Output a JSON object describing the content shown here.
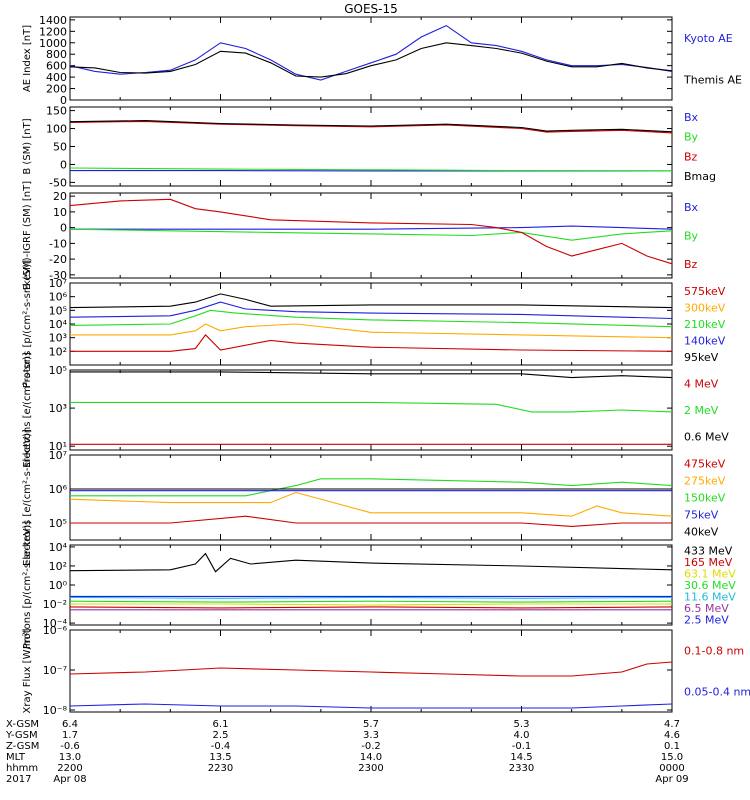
{
  "title": "GOES-15",
  "colors": {
    "black": "#000000",
    "blue": "#1f1fe0",
    "green": "#22dd22",
    "red": "#cc0000",
    "orange": "#ffaa00",
    "yellow": "#dddd00",
    "cyan": "#22bbdd",
    "purple": "#993399"
  },
  "chart_data": [
    {
      "type": "line",
      "ylabel": "AE Index [nT]",
      "ylim": [
        0,
        1450
      ],
      "yticks": [
        "1400",
        "1200",
        "1000",
        "800",
        "600",
        "400",
        "200",
        "0"
      ],
      "ytick_values": [
        1400,
        1200,
        1000,
        800,
        600,
        400,
        200,
        0
      ],
      "series": [
        {
          "name": "Kyoto AE",
          "color": "blue",
          "t": [
            0,
            5,
            10,
            15,
            20,
            25,
            30,
            35,
            40,
            45,
            50,
            55,
            60,
            65,
            70,
            75,
            80,
            85,
            90,
            95,
            100,
            105,
            110,
            115,
            120
          ],
          "values": [
            600,
            500,
            450,
            480,
            520,
            700,
            1000,
            900,
            700,
            450,
            350,
            500,
            650,
            800,
            1100,
            1300,
            1000,
            950,
            850,
            700,
            600,
            600,
            620,
            570,
            500
          ]
        },
        {
          "name": "Themis AE",
          "color": "black",
          "t": [
            0,
            5,
            10,
            15,
            20,
            25,
            30,
            35,
            40,
            45,
            50,
            55,
            60,
            65,
            70,
            75,
            80,
            85,
            90,
            95,
            100,
            105,
            110,
            115,
            120
          ],
          "values": [
            580,
            560,
            480,
            470,
            500,
            620,
            850,
            820,
            650,
            420,
            400,
            460,
            600,
            700,
            900,
            1000,
            950,
            900,
            820,
            680,
            580,
            580,
            640,
            560,
            510
          ]
        }
      ]
    },
    {
      "type": "line",
      "ylabel": "B (SM) [nT]",
      "ylim": [
        -60,
        160
      ],
      "yticks": [
        "150",
        "100",
        "50",
        "0",
        "-50"
      ],
      "ytick_values": [
        150,
        100,
        50,
        0,
        -50
      ],
      "series": [
        {
          "name": "Bx",
          "color": "blue",
          "t": [
            0,
            30,
            60,
            90,
            120
          ],
          "values": [
            -17,
            -17,
            -18,
            -18,
            -18
          ]
        },
        {
          "name": "By",
          "color": "green",
          "t": [
            0,
            30,
            60,
            90,
            120
          ],
          "values": [
            -10,
            -13,
            -15,
            -17,
            -18
          ]
        },
        {
          "name": "Bz",
          "color": "red",
          "t": [
            0,
            15,
            30,
            45,
            60,
            75,
            90,
            95,
            100,
            110,
            120
          ],
          "values": [
            117,
            120,
            112,
            108,
            105,
            110,
            100,
            90,
            92,
            95,
            88
          ]
        },
        {
          "name": "Bmag",
          "color": "black",
          "t": [
            0,
            15,
            30,
            45,
            60,
            75,
            90,
            95,
            100,
            110,
            120
          ],
          "values": [
            119,
            122,
            114,
            110,
            107,
            112,
            103,
            93,
            95,
            98,
            91
          ]
        }
      ]
    },
    {
      "type": "line",
      "ylabel": "B (SM)-IGRF (SM) [nT]",
      "ylim": [
        -32,
        22
      ],
      "yticks": [
        "20",
        "10",
        "0",
        "-10",
        "-20",
        "-30"
      ],
      "ytick_values": [
        20,
        10,
        0,
        -10,
        -20,
        -30
      ],
      "series": [
        {
          "name": "Bx",
          "color": "blue",
          "t": [
            0,
            30,
            60,
            90,
            100,
            110,
            120
          ],
          "values": [
            -1,
            -1,
            -1,
            0,
            1,
            0,
            -1
          ]
        },
        {
          "name": "By",
          "color": "green",
          "t": [
            0,
            20,
            40,
            60,
            80,
            90,
            100,
            110,
            120
          ],
          "values": [
            -1,
            -2,
            -3,
            -4,
            -5,
            -3,
            -8,
            -4,
            -2
          ]
        },
        {
          "name": "Bz",
          "color": "red",
          "t": [
            0,
            10,
            20,
            25,
            30,
            40,
            60,
            80,
            85,
            90,
            95,
            100,
            105,
            110,
            115,
            120
          ],
          "values": [
            14,
            17,
            18,
            12,
            10,
            5,
            3,
            2,
            0,
            -3,
            -12,
            -18,
            -14,
            -10,
            -18,
            -23
          ]
        }
      ]
    },
    {
      "type": "line",
      "ylabel": "Protons [p/(cm²-s-sr-keV)]",
      "yscale": "log",
      "ylim": [
        1,
        7
      ],
      "yticks": [
        "10⁷",
        "10⁶",
        "10⁵",
        "10⁴",
        "10³",
        "10²"
      ],
      "ytick_values": [
        7,
        6,
        5,
        4,
        3,
        2
      ],
      "series": [
        {
          "name": "575keV",
          "color": "red",
          "t": [
            0,
            20,
            25,
            27,
            30,
            40,
            45,
            60,
            90,
            120
          ],
          "values": [
            2.0,
            2.0,
            2.2,
            3.2,
            2.1,
            2.8,
            2.6,
            2.3,
            2.1,
            2.0
          ]
        },
        {
          "name": "300keV",
          "color": "orange",
          "t": [
            0,
            20,
            25,
            27,
            30,
            35,
            45,
            60,
            90,
            120
          ],
          "values": [
            3.2,
            3.2,
            3.5,
            4.0,
            3.5,
            3.8,
            4.0,
            3.4,
            3.2,
            3.0
          ]
        },
        {
          "name": "210keV",
          "color": "green",
          "t": [
            0,
            20,
            25,
            28,
            33,
            45,
            60,
            90,
            120
          ],
          "values": [
            3.9,
            4.0,
            4.6,
            5.0,
            4.8,
            4.5,
            4.3,
            4.1,
            3.8
          ]
        },
        {
          "name": "140keV",
          "color": "blue",
          "t": [
            0,
            20,
            25,
            30,
            35,
            45,
            60,
            90,
            120
          ],
          "values": [
            4.5,
            4.6,
            5.0,
            5.6,
            5.1,
            4.9,
            4.8,
            4.7,
            4.4
          ]
        },
        {
          "name": "95keV",
          "color": "black",
          "t": [
            0,
            20,
            25,
            30,
            35,
            40,
            60,
            90,
            120
          ],
          "values": [
            5.2,
            5.3,
            5.6,
            6.2,
            5.8,
            5.3,
            5.4,
            5.4,
            5.2
          ]
        }
      ]
    },
    {
      "type": "line",
      "ylabel": "Electrons [e/(cm²-s-sr)]",
      "yscale": "log",
      "ylim": [
        0.8,
        5
      ],
      "yticks": [
        "10⁵",
        "10³",
        "10¹"
      ],
      "ytick_values": [
        5,
        3,
        1
      ],
      "series": [
        {
          "name": "4 MeV",
          "color": "red",
          "t": [
            0,
            30,
            60,
            90,
            120
          ],
          "values": [
            1.1,
            1.1,
            1.1,
            1.1,
            1.1
          ]
        },
        {
          "name": "2 MeV",
          "color": "green",
          "t": [
            0,
            30,
            60,
            85,
            92,
            100,
            110,
            120
          ],
          "values": [
            3.3,
            3.3,
            3.3,
            3.2,
            2.8,
            2.8,
            2.9,
            2.8
          ]
        },
        {
          "name": "0.6 MeV",
          "color": "black",
          "t": [
            0,
            30,
            60,
            90,
            100,
            110,
            120
          ],
          "values": [
            4.9,
            4.9,
            4.8,
            4.8,
            4.6,
            4.7,
            4.6
          ]
        }
      ]
    },
    {
      "type": "line",
      "ylabel": "Electrons [e/(cm²-s-sr-keV)]",
      "yscale": "log",
      "ylim": [
        4.5,
        7
      ],
      "yticks": [
        "10⁷",
        "10⁶",
        "10⁵"
      ],
      "ytick_values": [
        7,
        6,
        5
      ],
      "series": [
        {
          "name": "475keV",
          "color": "red",
          "t": [
            0,
            20,
            35,
            45,
            60,
            90,
            100,
            110,
            120
          ],
          "values": [
            5.0,
            5.0,
            5.2,
            5.0,
            5.0,
            5.0,
            4.9,
            5.0,
            5.0
          ]
        },
        {
          "name": "275keV",
          "color": "orange",
          "t": [
            0,
            20,
            40,
            45,
            60,
            90,
            100,
            105,
            110,
            120
          ],
          "values": [
            5.7,
            5.6,
            5.6,
            5.9,
            5.3,
            5.3,
            5.2,
            5.5,
            5.3,
            5.2
          ]
        },
        {
          "name": "150keV",
          "color": "green",
          "t": [
            0,
            20,
            35,
            45,
            50,
            60,
            90,
            100,
            110,
            120
          ],
          "values": [
            5.8,
            5.8,
            5.8,
            6.1,
            6.3,
            6.3,
            6.2,
            6.1,
            6.2,
            6.1
          ]
        },
        {
          "name": "75keV",
          "color": "blue",
          "t": [
            0,
            30,
            60,
            90,
            120
          ],
          "values": [
            5.95,
            5.95,
            5.95,
            5.95,
            5.95
          ]
        },
        {
          "name": "40keV",
          "color": "black",
          "t": [
            0,
            30,
            60,
            90,
            120
          ],
          "values": [
            6.0,
            6.0,
            6.0,
            6.0,
            6.0
          ]
        }
      ]
    },
    {
      "type": "line",
      "ylabel": "Protons [p/(cm²-s-sr-keV)]",
      "yscale": "log",
      "ylim": [
        -4.2,
        4.2
      ],
      "yticks": [
        "10⁴",
        "10²",
        "10⁰",
        "10⁻²",
        "10⁻⁴"
      ],
      "ytick_values": [
        4,
        2,
        0,
        -2,
        -4
      ],
      "series": [
        {
          "name": "433 MeV",
          "color": "black",
          "t": [
            0,
            20,
            25,
            27,
            29,
            32,
            36,
            45,
            60,
            90,
            120
          ],
          "values": [
            1.5,
            1.6,
            2.2,
            3.3,
            1.4,
            2.8,
            2.2,
            2.6,
            2.3,
            2.0,
            1.6
          ]
        },
        {
          "name": "165 MeV",
          "color": "red",
          "t": [
            0,
            30,
            60,
            90,
            120
          ],
          "values": [
            -2.3,
            -2.4,
            -2.3,
            -2.4,
            -2.3
          ]
        },
        {
          "name": "63.1 MeV",
          "color": "yellow",
          "t": [
            0,
            30,
            60,
            90,
            120
          ],
          "values": [
            -2.0,
            -2.0,
            -2.1,
            -2.0,
            -2.0
          ]
        },
        {
          "name": "30.6 MeV",
          "color": "green",
          "t": [
            0,
            30,
            60,
            90,
            120
          ],
          "values": [
            -1.7,
            -1.8,
            -1.7,
            -1.8,
            -1.7
          ]
        },
        {
          "name": "11.6 MeV",
          "color": "cyan",
          "t": [
            0,
            30,
            60,
            90,
            120
          ],
          "values": [
            -1.3,
            -1.4,
            -1.3,
            -1.4,
            -1.3
          ]
        },
        {
          "name": "6.5 MeV",
          "color": "purple",
          "t": [
            0,
            30,
            60,
            90,
            120
          ],
          "values": [
            -2.6,
            -2.6,
            -2.6,
            -2.6,
            -2.6
          ]
        },
        {
          "name": "2.5 MeV",
          "color": "blue",
          "t": [
            0,
            30,
            60,
            90,
            120
          ],
          "values": [
            -1.2,
            -1.2,
            -1.2,
            -1.2,
            -1.2
          ]
        }
      ]
    },
    {
      "type": "line",
      "ylabel": "Xray Flux [W/m²]",
      "yscale": "log",
      "ylim": [
        -8.05,
        -6
      ],
      "yticks": [
        "10⁻⁶",
        "10⁻⁷",
        "10⁻⁸"
      ],
      "ytick_values": [
        -6,
        -7,
        -8
      ],
      "series": [
        {
          "name": "0.1-0.8 nm",
          "color": "red",
          "t": [
            0,
            15,
            30,
            45,
            60,
            75,
            90,
            100,
            110,
            115,
            120
          ],
          "values": [
            -7.1,
            -7.05,
            -6.95,
            -7.0,
            -7.05,
            -7.1,
            -7.15,
            -7.15,
            -7.05,
            -6.85,
            -6.8
          ]
        },
        {
          "name": "0.05-0.4 nm",
          "color": "blue",
          "t": [
            0,
            15,
            30,
            45,
            60,
            75,
            90,
            100,
            110,
            120
          ],
          "values": [
            -7.9,
            -7.85,
            -7.9,
            -7.9,
            -7.95,
            -7.95,
            -7.95,
            -7.95,
            -7.9,
            -7.85
          ]
        }
      ]
    }
  ],
  "orbit": {
    "row_labels": [
      "X-GSM",
      "Y-GSM",
      "Z-GSM",
      "MLT",
      "hhmm",
      "2017"
    ],
    "columns": [
      {
        "t": 0,
        "values": [
          "6.4",
          "1.7",
          "-0.6",
          "13.0",
          "2200",
          "Apr 08"
        ]
      },
      {
        "t": 30,
        "values": [
          "6.1",
          "2.5",
          "-0.4",
          "13.5",
          "2230",
          ""
        ]
      },
      {
        "t": 60,
        "values": [
          "5.7",
          "3.3",
          "-0.2",
          "14.0",
          "2300",
          ""
        ]
      },
      {
        "t": 90,
        "values": [
          "5.3",
          "4.0",
          "-0.1",
          "14.5",
          "2330",
          ""
        ]
      },
      {
        "t": 120,
        "values": [
          "4.7",
          "4.6",
          "0.1",
          "15.0",
          "0000",
          "Apr 09"
        ]
      }
    ]
  }
}
